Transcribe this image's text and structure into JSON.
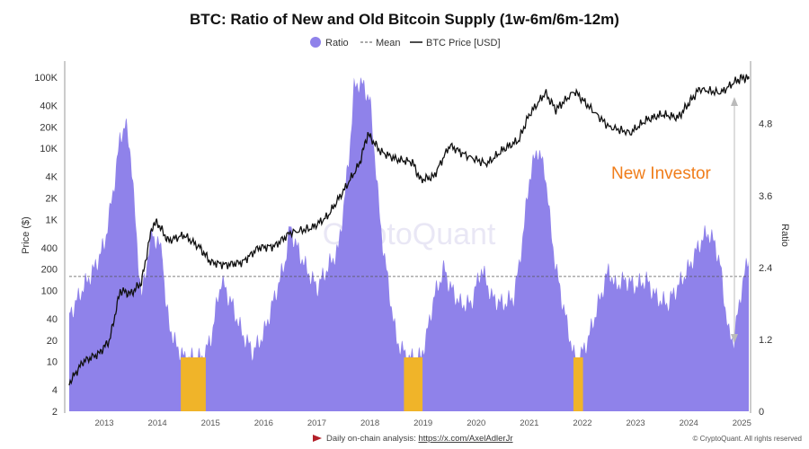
{
  "chart_data": {
    "type": "area",
    "title": "BTC: Ratio of New and Old Bitcoin Supply (1w-6m/6m-12m)",
    "legend": [
      {
        "name": "Ratio",
        "style": "area",
        "color": "#8f82ea"
      },
      {
        "name": "Mean",
        "style": "dashed",
        "color": "#555555"
      },
      {
        "name": "BTC Price [USD]",
        "style": "line",
        "color": "#111111"
      }
    ],
    "legend_placement": "top-center",
    "ylabel_left": "Price ($)",
    "ylabel_right": "Ratio",
    "left_scale": "log",
    "left_ylim": [
      2,
      100000
    ],
    "left_ticks": [
      "2",
      "4",
      "10",
      "20",
      "40",
      "100",
      "200",
      "400",
      "1K",
      "2K",
      "4K",
      "10K",
      "20K",
      "40K",
      "100K"
    ],
    "left_tick_values": [
      2,
      4,
      10,
      20,
      40,
      100,
      200,
      400,
      1000,
      2000,
      4000,
      10000,
      20000,
      40000,
      100000
    ],
    "right_ylim": [
      0,
      5.8
    ],
    "right_ticks": [
      "0",
      "1.2",
      "2.4",
      "3.6",
      "4.8"
    ],
    "right_tick_values": [
      0,
      1.2,
      2.4,
      3.6,
      4.8
    ],
    "xlim": [
      2012.34,
      2025.13
    ],
    "x_ticks": [
      "2013",
      "2014",
      "2015",
      "2016",
      "2017",
      "2018",
      "2019",
      "2020",
      "2021",
      "2022",
      "2023",
      "2024",
      "2025"
    ],
    "mean": 2.25,
    "low_threshold": 1.0,
    "low_color": "#f0b429",
    "ratio": {
      "x": [
        2012.34,
        2012.6,
        2012.8,
        2013.0,
        2013.1,
        2013.2,
        2013.3,
        2013.4,
        2013.5,
        2013.6,
        2013.7,
        2013.8,
        2013.9,
        2014.0,
        2014.1,
        2014.15,
        2014.3,
        2014.5,
        2014.7,
        2014.85,
        2015.0,
        2015.2,
        2015.4,
        2015.6,
        2015.8,
        2016.0,
        2016.2,
        2016.4,
        2016.5,
        2016.6,
        2016.8,
        2017.0,
        2017.2,
        2017.4,
        2017.5,
        2017.6,
        2017.7,
        2017.8,
        2017.9,
        2018.0,
        2018.1,
        2018.2,
        2018.35,
        2018.5,
        2018.7,
        2018.95,
        2019.05,
        2019.2,
        2019.4,
        2019.5,
        2019.7,
        2019.9,
        2020.1,
        2020.3,
        2020.5,
        2020.7,
        2020.8,
        2020.9,
        2021.0,
        2021.15,
        2021.3,
        2021.4,
        2021.5,
        2021.7,
        2021.85,
        2021.95,
        2022.1,
        2022.3,
        2022.5,
        2022.6,
        2022.8,
        2023.0,
        2023.2,
        2023.4,
        2023.6,
        2023.8,
        2024.0,
        2024.2,
        2024.35,
        2024.5,
        2024.6,
        2024.75,
        2024.85,
        2025.0,
        2025.13
      ],
      "y": [
        1.6,
        2.07,
        2.37,
        2.8,
        3.3,
        3.9,
        4.6,
        4.8,
        4.3,
        3.0,
        1.9,
        2.5,
        3.0,
        2.8,
        2.7,
        1.8,
        1.2,
        0.9,
        0.9,
        0.9,
        1.2,
        2.2,
        1.8,
        1.3,
        1.0,
        1.3,
        1.9,
        2.5,
        3.1,
        2.8,
        2.4,
        2.07,
        2.4,
        2.7,
        3.4,
        4.2,
        5.4,
        5.5,
        5.4,
        5.2,
        4.2,
        3.1,
        2.1,
        1.2,
        0.9,
        0.9,
        1.2,
        1.9,
        2.4,
        2.1,
        1.8,
        1.8,
        2.4,
        1.9,
        1.8,
        1.9,
        2.4,
        3.1,
        3.9,
        4.4,
        4.0,
        3.1,
        2.4,
        1.5,
        0.9,
        0.9,
        1.2,
        1.8,
        2.4,
        2.1,
        2.2,
        2.1,
        2.2,
        1.9,
        1.8,
        2.1,
        2.4,
        2.8,
        3.0,
        2.8,
        2.4,
        1.3,
        1.2,
        2.1,
        2.6
      ]
    },
    "price": {
      "x": [
        2012.34,
        2012.6,
        2012.9,
        2013.1,
        2013.3,
        2013.5,
        2013.7,
        2013.9,
        2014.0,
        2014.2,
        2014.5,
        2014.8,
        2015.0,
        2015.3,
        2015.6,
        2015.9,
        2016.2,
        2016.5,
        2016.9,
        2017.2,
        2017.5,
        2017.8,
        2017.96,
        2018.2,
        2018.5,
        2018.8,
        2018.95,
        2019.2,
        2019.5,
        2019.8,
        2020.2,
        2020.5,
        2020.8,
        2020.99,
        2021.3,
        2021.5,
        2021.85,
        2022.1,
        2022.5,
        2022.9,
        2023.2,
        2023.5,
        2023.8,
        2024.0,
        2024.2,
        2024.6,
        2024.9,
        2025.05,
        2025.13
      ],
      "y": [
        5,
        10,
        13,
        20,
        100,
        90,
        130,
        800,
        900,
        500,
        600,
        400,
        250,
        230,
        250,
        400,
        420,
        650,
        750,
        1100,
        2500,
        6000,
        16000,
        9000,
        7000,
        6400,
        3600,
        4000,
        11000,
        8000,
        6000,
        9500,
        13000,
        29000,
        60000,
        35000,
        64000,
        40000,
        20000,
        16500,
        25000,
        30000,
        27000,
        43000,
        68000,
        60000,
        90000,
        100000,
        95000
      ]
    },
    "annotation": "New Investor",
    "annotation_color": "#f07d1a",
    "watermark": "CryptoQuant",
    "footer_text": "Daily on-chain analysis: ",
    "footer_link": "https://x.com/AxelAdlerJr",
    "copyright": "© CryptoQuant. All rights reserved"
  }
}
